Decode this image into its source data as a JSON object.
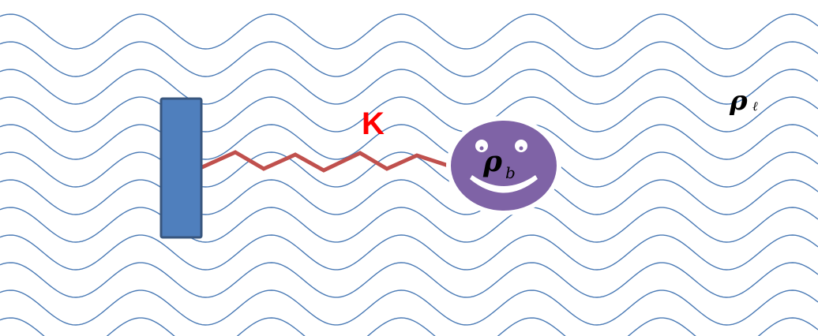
{
  "labels": {
    "spring_constant": "K",
    "bath_density_symbol": "ρ",
    "bath_density_subscript": "ℓ",
    "particle_density_symbol": "ρ",
    "particle_density_subscript": "b"
  },
  "colors": {
    "wave_lines": "#4a7ab5",
    "wall_fill": "#4f7fbd",
    "wall_stroke": "#38567e",
    "spring": "#c0504d",
    "spring_label": "#ff0000",
    "particle_fill": "#7f63a6",
    "particle_stroke": "#ffffff",
    "particle_face": "#ffffff",
    "text": "#000000"
  },
  "icons": {
    "wall": "wall-rect",
    "spring": "zigzag-spring",
    "particle": "smiley-face-circle",
    "bath": "wavy-lines"
  }
}
